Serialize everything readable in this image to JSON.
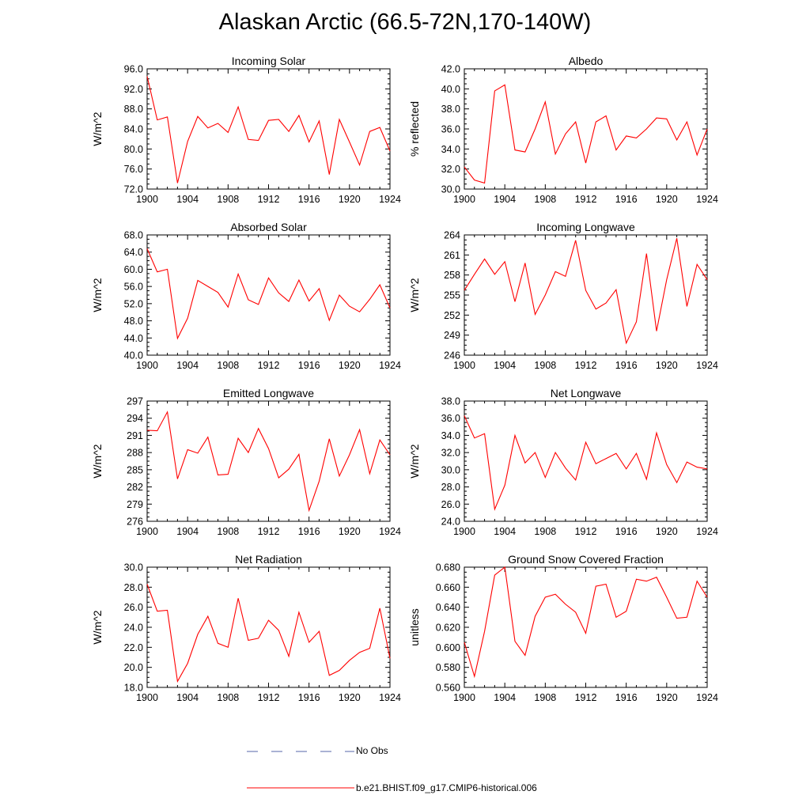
{
  "figure_title": "Alaskan Arctic (66.5-72N,170-140W)",
  "colors": {
    "model": "#ff0000",
    "obs": "#5566aa",
    "axis": "#000000"
  },
  "legend": [
    {
      "label": "No Obs",
      "style": "dashed",
      "color": "#5566aa"
    },
    {
      "label": "b.e21.BHIST.f09_g17.CMIP6-historical.006",
      "style": "solid",
      "color": "#ff0000"
    }
  ],
  "chart_data": [
    {
      "type": "line",
      "title": "Incoming Solar",
      "ylabel": "W/m^2",
      "xlabel": "",
      "xlim": [
        1900,
        1924
      ],
      "ylim": [
        72,
        96
      ],
      "xticks": [
        "1900",
        "1904",
        "1908",
        "1912",
        "1916",
        "1920",
        "1924"
      ],
      "yticks": [
        "72.0",
        "76.0",
        "80.0",
        "84.0",
        "88.0",
        "92.0",
        "96.0"
      ],
      "series": [
        {
          "name": "b.e21.BHIST.f09_g17.CMIP6-historical.006",
          "x": [
            1900,
            1901,
            1902,
            1903,
            1904,
            1905,
            1906,
            1907,
            1908,
            1909,
            1910,
            1911,
            1912,
            1913,
            1914,
            1915,
            1916,
            1917,
            1918,
            1919,
            1920,
            1921,
            1922,
            1923,
            1924
          ],
          "values": [
            94.5,
            85.8,
            86.4,
            73.2,
            81.5,
            86.5,
            84.2,
            85.1,
            83.3,
            88.4,
            81.9,
            81.7,
            85.7,
            85.9,
            83.5,
            86.7,
            81.4,
            85.6,
            74.9,
            85.9,
            81.4,
            76.8,
            83.5,
            84.3,
            79.6
          ]
        }
      ]
    },
    {
      "type": "line",
      "title": "Albedo",
      "ylabel": "% reflected",
      "xlabel": "",
      "xlim": [
        1900,
        1924
      ],
      "ylim": [
        30,
        42
      ],
      "xticks": [
        "1900",
        "1904",
        "1908",
        "1912",
        "1916",
        "1920",
        "1924"
      ],
      "yticks": [
        "30.0",
        "32.0",
        "34.0",
        "36.0",
        "38.0",
        "40.0",
        "42.0"
      ],
      "series": [
        {
          "name": "b.e21.BHIST.f09_g17.CMIP6-historical.006",
          "x": [
            1900,
            1901,
            1902,
            1903,
            1904,
            1905,
            1906,
            1907,
            1908,
            1909,
            1910,
            1911,
            1912,
            1913,
            1914,
            1915,
            1916,
            1917,
            1918,
            1919,
            1920,
            1921,
            1922,
            1923,
            1924
          ],
          "values": [
            32.2,
            30.9,
            30.6,
            39.8,
            40.4,
            33.9,
            33.7,
            36.0,
            38.7,
            33.5,
            35.5,
            36.7,
            32.6,
            36.7,
            37.3,
            33.9,
            35.3,
            35.1,
            36.0,
            37.1,
            37.0,
            34.9,
            36.7,
            33.4,
            36.0
          ]
        }
      ]
    },
    {
      "type": "line",
      "title": "Absorbed Solar",
      "ylabel": "W/m^2",
      "xlabel": "",
      "xlim": [
        1900,
        1924
      ],
      "ylim": [
        40,
        68
      ],
      "xticks": [
        "1900",
        "1904",
        "1908",
        "1912",
        "1916",
        "1920",
        "1924"
      ],
      "yticks": [
        "40.0",
        "44.0",
        "48.0",
        "52.0",
        "56.0",
        "60.0",
        "64.0",
        "68.0"
      ],
      "series": [
        {
          "name": "b.e21.BHIST.f09_g17.CMIP6-historical.006",
          "x": [
            1900,
            1901,
            1902,
            1903,
            1904,
            1905,
            1906,
            1907,
            1908,
            1909,
            1910,
            1911,
            1912,
            1913,
            1914,
            1915,
            1916,
            1917,
            1918,
            1919,
            1920,
            1921,
            1922,
            1923,
            1924
          ],
          "values": [
            64.8,
            59.4,
            60.0,
            43.9,
            48.6,
            57.4,
            56.0,
            54.6,
            51.2,
            58.9,
            52.9,
            51.8,
            58.0,
            54.5,
            52.5,
            57.5,
            52.6,
            55.5,
            48.1,
            54.0,
            51.4,
            50.1,
            53.0,
            56.4,
            51.0
          ]
        }
      ]
    },
    {
      "type": "line",
      "title": "Incoming Longwave",
      "ylabel": "W/m^2",
      "xlabel": "",
      "xlim": [
        1900,
        1924
      ],
      "ylim": [
        246,
        264
      ],
      "xticks": [
        "1900",
        "1904",
        "1908",
        "1912",
        "1916",
        "1920",
        "1924"
      ],
      "yticks": [
        "246",
        "249",
        "252",
        "255",
        "258",
        "261",
        "264"
      ],
      "series": [
        {
          "name": "b.e21.BHIST.f09_g17.CMIP6-historical.006",
          "x": [
            1900,
            1901,
            1902,
            1903,
            1904,
            1905,
            1906,
            1907,
            1908,
            1909,
            1910,
            1911,
            1912,
            1913,
            1914,
            1915,
            1916,
            1917,
            1918,
            1919,
            1920,
            1921,
            1922,
            1923,
            1924
          ],
          "values": [
            255.7,
            258.1,
            260.4,
            258.1,
            260.0,
            254.0,
            259.8,
            252.1,
            255.0,
            258.5,
            257.8,
            263.2,
            255.7,
            252.9,
            253.8,
            255.8,
            247.8,
            251.0,
            261.2,
            249.6,
            257.3,
            263.5,
            253.3,
            259.6,
            257.3
          ]
        }
      ]
    },
    {
      "type": "line",
      "title": "Emitted Longwave",
      "ylabel": "W/m^2",
      "xlabel": "",
      "xlim": [
        1900,
        1924
      ],
      "ylim": [
        276,
        297
      ],
      "xticks": [
        "1900",
        "1904",
        "1908",
        "1912",
        "1916",
        "1920",
        "1924"
      ],
      "yticks": [
        "276",
        "279",
        "282",
        "285",
        "288",
        "291",
        "294",
        "297"
      ],
      "series": [
        {
          "name": "b.e21.BHIST.f09_g17.CMIP6-historical.006",
          "x": [
            1900,
            1901,
            1902,
            1903,
            1904,
            1905,
            1906,
            1907,
            1908,
            1909,
            1910,
            1911,
            1912,
            1913,
            1914,
            1915,
            1916,
            1917,
            1918,
            1919,
            1920,
            1921,
            1922,
            1923,
            1924
          ],
          "values": [
            291.9,
            291.8,
            295.1,
            283.4,
            288.5,
            287.9,
            290.7,
            284.1,
            284.2,
            290.5,
            288.0,
            292.2,
            288.7,
            283.6,
            285.1,
            287.7,
            277.9,
            283.0,
            290.4,
            283.9,
            287.6,
            292.0,
            284.3,
            290.2,
            287.6
          ]
        }
      ]
    },
    {
      "type": "line",
      "title": "Net Longwave",
      "ylabel": "W/m^2",
      "xlabel": "",
      "xlim": [
        1900,
        1924
      ],
      "ylim": [
        24,
        38
      ],
      "xticks": [
        "1900",
        "1904",
        "1908",
        "1912",
        "1916",
        "1920",
        "1924"
      ],
      "yticks": [
        "24.0",
        "26.0",
        "28.0",
        "30.0",
        "32.0",
        "34.0",
        "36.0",
        "38.0"
      ],
      "series": [
        {
          "name": "b.e21.BHIST.f09_g17.CMIP6-historical.006",
          "x": [
            1900,
            1901,
            1902,
            1903,
            1904,
            1905,
            1906,
            1907,
            1908,
            1909,
            1910,
            1911,
            1912,
            1913,
            1914,
            1915,
            1916,
            1917,
            1918,
            1919,
            1920,
            1921,
            1922,
            1923,
            1924
          ],
          "values": [
            36.3,
            33.7,
            34.2,
            25.4,
            28.2,
            34.0,
            30.8,
            32.0,
            29.1,
            32.0,
            30.2,
            28.8,
            33.2,
            30.7,
            31.3,
            31.9,
            30.1,
            31.9,
            28.9,
            34.3,
            30.6,
            28.5,
            30.9,
            30.3,
            30.1
          ]
        }
      ]
    },
    {
      "type": "line",
      "title": "Net Radiation",
      "ylabel": "W/m^2",
      "xlabel": "",
      "xlim": [
        1900,
        1924
      ],
      "ylim": [
        18,
        30
      ],
      "xticks": [
        "1900",
        "1904",
        "1908",
        "1912",
        "1916",
        "1920",
        "1924"
      ],
      "yticks": [
        "18.0",
        "20.0",
        "22.0",
        "24.0",
        "26.0",
        "28.0",
        "30.0"
      ],
      "series": [
        {
          "name": "b.e21.BHIST.f09_g17.CMIP6-historical.006",
          "x": [
            1900,
            1901,
            1902,
            1903,
            1904,
            1905,
            1906,
            1907,
            1908,
            1909,
            1910,
            1911,
            1912,
            1913,
            1914,
            1915,
            1916,
            1917,
            1918,
            1919,
            1920,
            1921,
            1922,
            1923,
            1924
          ],
          "values": [
            28.3,
            25.6,
            25.7,
            18.6,
            20.4,
            23.3,
            25.1,
            22.4,
            22.0,
            26.9,
            22.7,
            22.9,
            24.7,
            23.7,
            21.1,
            25.5,
            22.5,
            23.6,
            19.2,
            19.7,
            20.7,
            21.5,
            21.9,
            25.9,
            20.9
          ]
        }
      ]
    },
    {
      "type": "line",
      "title": "Ground Snow Covered Fraction",
      "ylabel": "unitless",
      "xlabel": "",
      "xlim": [
        1900,
        1924
      ],
      "ylim": [
        0.56,
        0.68
      ],
      "xticks": [
        "1900",
        "1904",
        "1908",
        "1912",
        "1916",
        "1920",
        "1924"
      ],
      "yticks": [
        "0.560",
        "0.580",
        "0.600",
        "0.620",
        "0.640",
        "0.660",
        "0.680"
      ],
      "series": [
        {
          "name": "b.e21.BHIST.f09_g17.CMIP6-historical.006",
          "x": [
            1900,
            1901,
            1902,
            1903,
            1904,
            1905,
            1906,
            1907,
            1908,
            1909,
            1910,
            1911,
            1912,
            1913,
            1914,
            1915,
            1916,
            1917,
            1918,
            1919,
            1920,
            1921,
            1922,
            1923,
            1924
          ],
          "values": [
            0.605,
            0.571,
            0.616,
            0.672,
            0.68,
            0.606,
            0.592,
            0.631,
            0.65,
            0.653,
            0.643,
            0.635,
            0.614,
            0.661,
            0.663,
            0.63,
            0.636,
            0.668,
            0.666,
            0.67,
            0.65,
            0.629,
            0.63,
            0.666,
            0.65
          ]
        }
      ]
    }
  ]
}
